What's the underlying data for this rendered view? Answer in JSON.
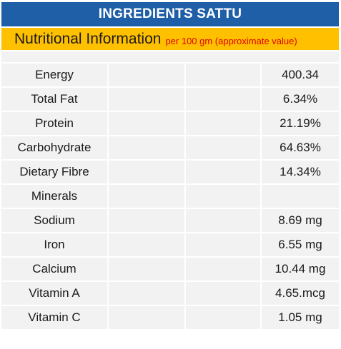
{
  "title": "INGREDIENTS SATTU",
  "subtitle": {
    "main": "Nutritional Information",
    "note": "per 100 gm (approximate value)"
  },
  "rows": [
    {
      "name": "Energy",
      "value": "400.34"
    },
    {
      "name": "Total Fat",
      "value": "6.34%"
    },
    {
      "name": "Protein",
      "value": "21.19%"
    },
    {
      "name": "Carbohydrate",
      "value": "64.63%"
    },
    {
      "name": "Dietary Fibre",
      "value": "14.34%"
    },
    {
      "name": "Minerals",
      "value": ""
    },
    {
      "name": "Sodium",
      "value": "8.69 mg"
    },
    {
      "name": "Iron",
      "value": "6.55 mg"
    },
    {
      "name": "Calcium",
      "value": "10.44 mg"
    },
    {
      "name": "Vitamin A",
      "value": "4.65.mcg"
    },
    {
      "name": "Vitamin C",
      "value": "1.05 mg"
    }
  ],
  "colors": {
    "title_bg": "#1f5fa8",
    "subtitle_bg": "#ffc000",
    "note_text": "#e00000",
    "row_bg": "#f2f2f2"
  }
}
